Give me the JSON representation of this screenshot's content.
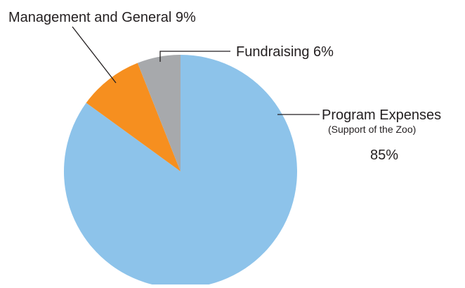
{
  "chart_data": {
    "type": "pie",
    "slices": [
      {
        "label": "Program Expenses",
        "sublabel": "(Support of the Zoo)",
        "value_label": "85%",
        "value": 85,
        "color": "#8dc3ea"
      },
      {
        "label": "Management and General",
        "value_label": "9%",
        "value": 9,
        "color": "#f68f1f"
      },
      {
        "label": "Fundraising",
        "value_label": "6%",
        "value": 6,
        "color": "#a7a9ac"
      }
    ],
    "start": "12 o'clock",
    "direction": "clockwise"
  }
}
